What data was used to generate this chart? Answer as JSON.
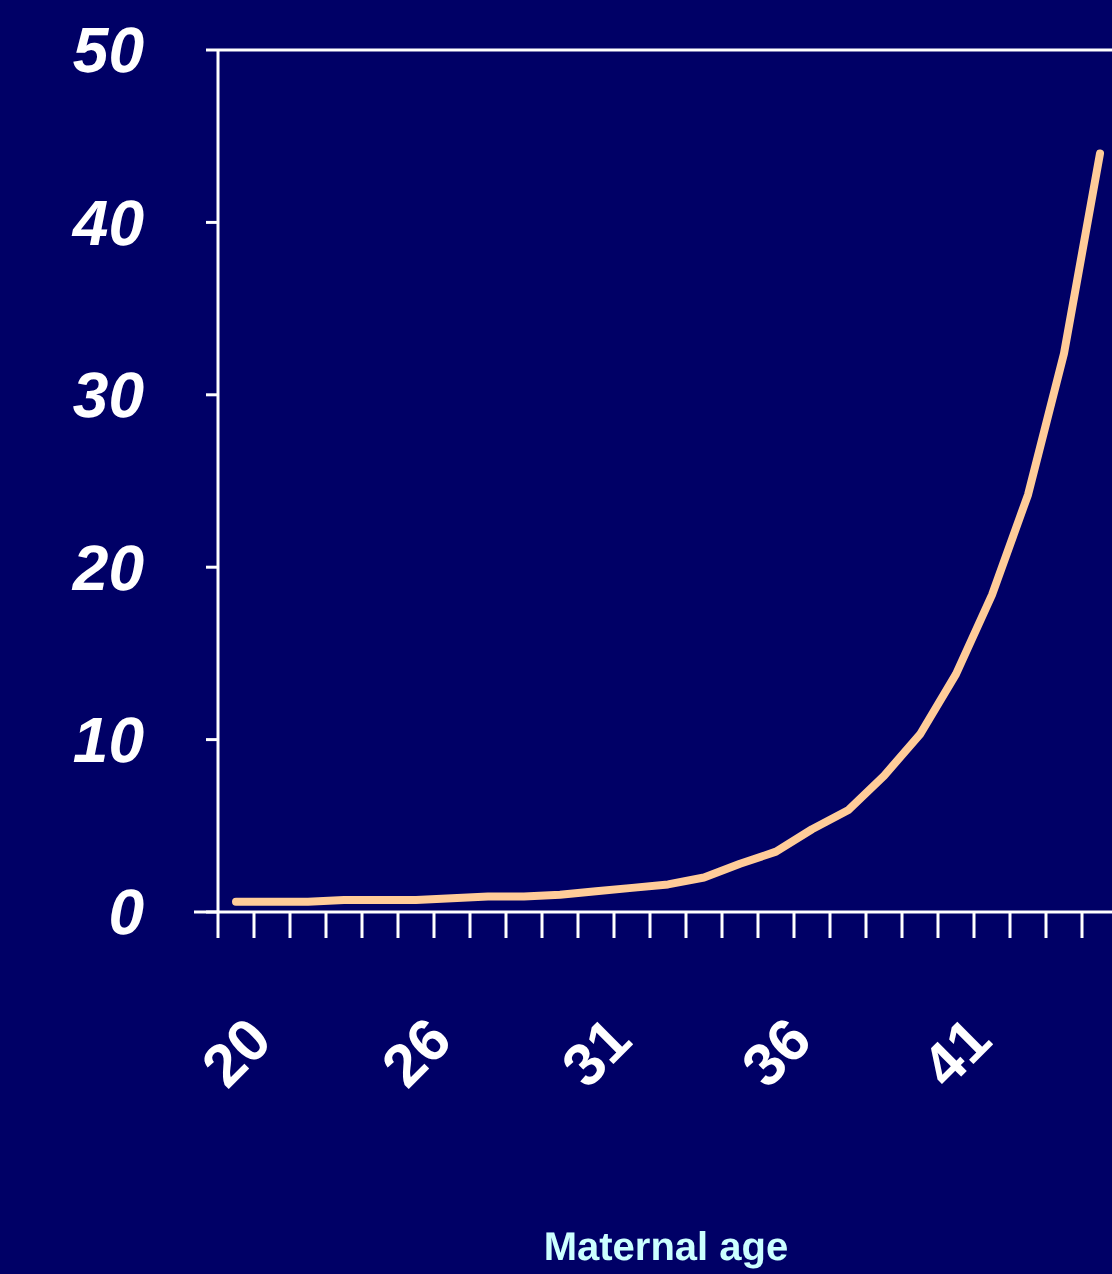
{
  "chart_data": {
    "type": "line",
    "xlabel": "Maternal age",
    "categories": [
      "20",
      null,
      null,
      null,
      null,
      "26",
      null,
      null,
      null,
      null,
      "31",
      null,
      null,
      null,
      null,
      "36",
      null,
      null,
      null,
      null,
      "41",
      null,
      null,
      null,
      null
    ],
    "series": [
      {
        "color": "#ffcc99",
        "values": [
          0.6,
          0.6,
          0.6,
          0.7,
          0.7,
          0.7,
          0.8,
          0.9,
          0.9,
          1.0,
          1.2,
          1.4,
          1.6,
          2.0,
          2.8,
          3.5,
          4.8,
          5.9,
          7.9,
          10.3,
          13.8,
          18.4,
          24.2,
          32.4,
          44.0
        ]
      }
    ],
    "ylim": [
      0,
      50
    ],
    "yticks": [
      0,
      10,
      20,
      30,
      40,
      50
    ],
    "grid": false,
    "marker": "none",
    "line_style": "solid"
  }
}
